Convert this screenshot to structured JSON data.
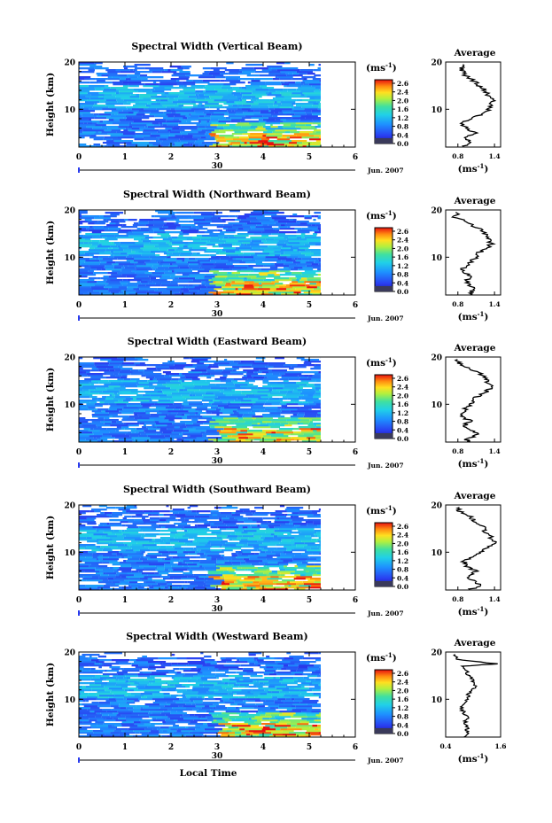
{
  "chart_data": [
    {
      "type": "heatmap",
      "title": "Spectral Width (Vertical Beam)",
      "ylabel": "Height (km)",
      "xlim": [
        0,
        6
      ],
      "ylim": [
        2,
        20
      ],
      "x_ticks": [
        "0",
        "1",
        "2",
        "3",
        "4",
        "5",
        "6"
      ],
      "y_ticks": [
        "20",
        "10"
      ],
      "date_day": "30",
      "date_month": "Jun. 2007",
      "colorbar": {
        "unit": "(ms",
        "unit_exp": "-1",
        "unit_close": ")",
        "ticks": [
          "2.6",
          "2.4",
          "2.0",
          "1.6",
          "1.2",
          "0.8",
          "0.4",
          "0.0"
        ]
      },
      "average": {
        "title": "Average",
        "xlabel": "(ms",
        "xlabel_exp": "-1",
        "xlabel_close": ")",
        "x_ticks": [
          "0.8",
          "1.4"
        ],
        "xlim": [
          0.6,
          1.5
        ],
        "y_ticks": [
          "20",
          "10"
        ],
        "profile": [
          [
            19.5,
            0.9
          ],
          [
            18.5,
            0.85
          ],
          [
            17.5,
            0.9
          ],
          [
            16,
            1.05
          ],
          [
            15,
            1.15
          ],
          [
            14,
            1.25
          ],
          [
            13,
            1.3
          ],
          [
            12,
            1.4
          ],
          [
            11,
            1.35
          ],
          [
            10,
            1.3
          ],
          [
            9,
            1.2
          ],
          [
            8,
            1.0
          ],
          [
            7,
            0.85
          ],
          [
            6,
            0.95
          ],
          [
            5,
            1.1
          ],
          [
            4,
            0.95
          ],
          [
            3,
            1.0
          ],
          [
            2,
            0.9
          ]
        ]
      }
    },
    {
      "type": "heatmap",
      "title": "Spectral Width (Northward Beam)",
      "ylabel": "Height (km)",
      "xlim": [
        0,
        6
      ],
      "ylim": [
        2,
        20
      ],
      "x_ticks": [
        "0",
        "1",
        "2",
        "3",
        "4",
        "5",
        "6"
      ],
      "y_ticks": [
        "20",
        "10"
      ],
      "date_day": "30",
      "date_month": "Jun. 2007",
      "colorbar": {
        "unit": "(ms",
        "unit_exp": "-1",
        "unit_close": ")",
        "ticks": [
          "2.6",
          "2.4",
          "2.0",
          "1.6",
          "1.2",
          "0.8",
          "0.4",
          "0.0"
        ]
      },
      "average": {
        "title": "Average",
        "xlabel": "(ms",
        "xlabel_exp": "-1",
        "xlabel_close": ")",
        "x_ticks": [
          "0.8",
          "1.4"
        ],
        "xlim": [
          0.6,
          1.5
        ],
        "y_ticks": [
          "20",
          "10"
        ],
        "profile": [
          [
            19.5,
            0.8
          ],
          [
            18.5,
            0.75
          ],
          [
            17.5,
            0.95
          ],
          [
            16,
            1.15
          ],
          [
            15,
            1.25
          ],
          [
            14,
            1.3
          ],
          [
            13,
            1.35
          ],
          [
            12,
            1.3
          ],
          [
            11,
            1.15
          ],
          [
            10,
            1.1
          ],
          [
            9,
            1.0
          ],
          [
            8,
            0.9
          ],
          [
            7,
            0.85
          ],
          [
            6,
            1.0
          ],
          [
            5,
            0.95
          ],
          [
            4,
            1.0
          ],
          [
            3,
            1.05
          ],
          [
            2,
            1.0
          ]
        ]
      }
    },
    {
      "type": "heatmap",
      "title": "Spectral Width (Eastward Beam)",
      "ylabel": "Height (km)",
      "xlim": [
        0,
        6
      ],
      "ylim": [
        2,
        20
      ],
      "x_ticks": [
        "0",
        "1",
        "2",
        "3",
        "4",
        "5",
        "6"
      ],
      "y_ticks": [
        "20",
        "10"
      ],
      "date_day": "30",
      "date_month": "Jun. 2007",
      "colorbar": {
        "unit": "(ms",
        "unit_exp": "-1",
        "unit_close": ")",
        "ticks": [
          "2.6",
          "2.4",
          "2.0",
          "1.6",
          "1.2",
          "0.8",
          "0.4",
          "0.0"
        ]
      },
      "average": {
        "title": "Average",
        "xlabel": "(ms",
        "xlabel_exp": "-1",
        "xlabel_close": ")",
        "x_ticks": [
          "0.8",
          "1.4"
        ],
        "xlim": [
          0.6,
          1.5
        ],
        "y_ticks": [
          "20",
          "10"
        ],
        "profile": [
          [
            19.5,
            0.75
          ],
          [
            18.5,
            0.85
          ],
          [
            17.5,
            1.0
          ],
          [
            16.5,
            1.15
          ],
          [
            15.5,
            1.25
          ],
          [
            14.5,
            1.3
          ],
          [
            13.5,
            1.35
          ],
          [
            12.5,
            1.25
          ],
          [
            11.5,
            1.1
          ],
          [
            10.5,
            1.05
          ],
          [
            9.5,
            0.95
          ],
          [
            8.5,
            0.9
          ],
          [
            7.5,
            0.85
          ],
          [
            6.5,
            1.0
          ],
          [
            5.5,
            0.9
          ],
          [
            4.5,
            1.05
          ],
          [
            3.5,
            1.1
          ],
          [
            2.5,
            0.95
          ],
          [
            2,
            1.0
          ]
        ]
      }
    },
    {
      "type": "heatmap",
      "title": "Spectral Width (Southward Beam)",
      "ylabel": "Height (km)",
      "xlim": [
        0,
        6
      ],
      "ylim": [
        2,
        20
      ],
      "x_ticks": [
        "0",
        "1",
        "2",
        "3",
        "4",
        "5",
        "6"
      ],
      "y_ticks": [
        "20",
        "10"
      ],
      "date_day": "30",
      "date_month": "Jun. 2007",
      "colorbar": {
        "unit": "(ms",
        "unit_exp": "-1",
        "unit_close": ")",
        "ticks": [
          "2.6",
          "2.4",
          "2.0",
          "1.6",
          "1.2",
          "0.8",
          "0.4",
          "0.0"
        ]
      },
      "average": {
        "title": "Average",
        "xlabel": "(ms",
        "xlabel_exp": "-1",
        "xlabel_close": ")",
        "x_ticks": [
          "0.8",
          "1.4"
        ],
        "xlim": [
          0.6,
          1.5
        ],
        "y_ticks": [
          "20",
          "10"
        ],
        "profile": [
          [
            19.5,
            0.8
          ],
          [
            18.5,
            0.85
          ],
          [
            17.5,
            1.0
          ],
          [
            16.5,
            1.1
          ],
          [
            15.5,
            1.2
          ],
          [
            14.5,
            1.25
          ],
          [
            13,
            1.35
          ],
          [
            12,
            1.4
          ],
          [
            11,
            1.3
          ],
          [
            10,
            1.2
          ],
          [
            9,
            1.05
          ],
          [
            8,
            0.9
          ],
          [
            7,
            0.95
          ],
          [
            6,
            1.1
          ],
          [
            5,
            0.95
          ],
          [
            4,
            1.05
          ],
          [
            3,
            1.15
          ],
          [
            2,
            1.0
          ]
        ]
      }
    },
    {
      "type": "heatmap",
      "title": "Spectral Width (Westward Beam)",
      "ylabel": "Height (km)",
      "xlabel": "Local Time",
      "xlim": [
        0,
        6
      ],
      "ylim": [
        2,
        20
      ],
      "x_ticks": [
        "0",
        "1",
        "2",
        "3",
        "4",
        "5",
        "6"
      ],
      "y_ticks": [
        "20",
        "10"
      ],
      "date_day": "30",
      "date_month": "Jun. 2007",
      "colorbar": {
        "unit": "(ms",
        "unit_exp": "-1",
        "unit_close": ")",
        "ticks": [
          "2.6",
          "2.4",
          "2.0",
          "1.6",
          "1.2",
          "0.8",
          "0.4",
          "0.0"
        ]
      },
      "average": {
        "title": "Average",
        "xlabel": "(ms",
        "xlabel_exp": "-1",
        "xlabel_close": ")",
        "x_ticks": [
          "0.4",
          "1.6"
        ],
        "xlim": [
          0.4,
          1.6
        ],
        "y_ticks": [
          "20",
          "10"
        ],
        "profile": [
          [
            19.5,
            0.6
          ],
          [
            18.5,
            0.65
          ],
          [
            17.5,
            1.5
          ],
          [
            17,
            0.8
          ],
          [
            16,
            0.85
          ],
          [
            15,
            0.9
          ],
          [
            14,
            1.0
          ],
          [
            13,
            1.05
          ],
          [
            12,
            1.0
          ],
          [
            11,
            0.9
          ],
          [
            10,
            0.85
          ],
          [
            9,
            0.8
          ],
          [
            8,
            0.75
          ],
          [
            7,
            0.8
          ],
          [
            6,
            0.9
          ],
          [
            5,
            0.8
          ],
          [
            4,
            0.85
          ],
          [
            3,
            0.9
          ],
          [
            2,
            0.8
          ]
        ]
      }
    }
  ]
}
